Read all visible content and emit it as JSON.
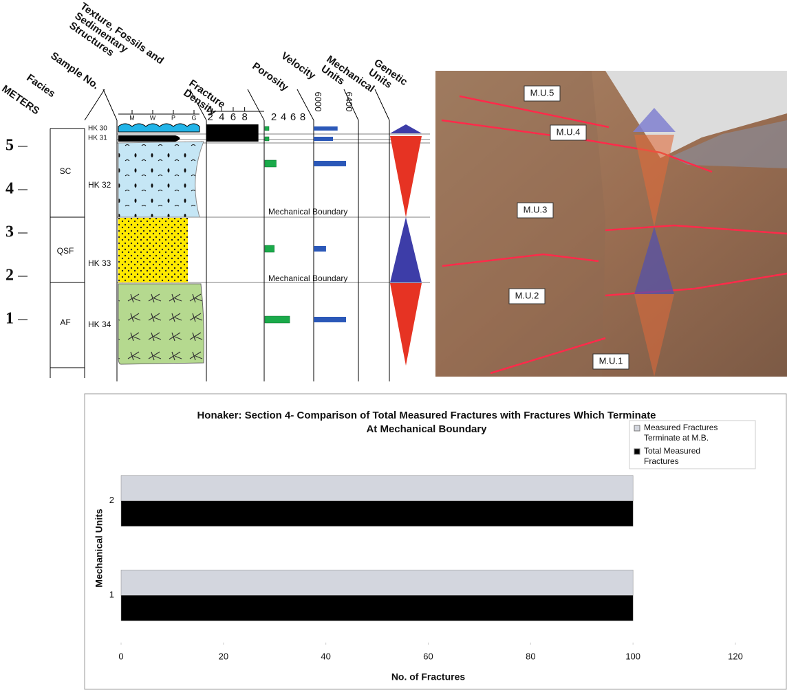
{
  "stratigraphic_column": {
    "headers": [
      [
        "METERS"
      ],
      [
        "Facies"
      ],
      [
        "Sample No."
      ],
      [
        "Texture, Fossils and",
        "Sedimentary",
        "Structures"
      ],
      [
        "Fracture",
        "Density"
      ],
      [
        "Porosity"
      ],
      [
        "Velocity"
      ],
      [
        "Mechanical",
        "Units"
      ],
      [
        "Genetic",
        "Units"
      ]
    ],
    "meter_ticks": [
      1,
      2,
      3,
      4,
      5
    ],
    "texture_scale": [
      "M",
      "W",
      "P",
      "G"
    ],
    "facies": [
      "SC",
      "QSF",
      "AF"
    ],
    "samples": [
      "HK 30",
      "HK 31",
      "HK 32",
      "HK 33",
      "HK 34"
    ],
    "fracture_density_ticks": [
      2,
      4,
      6,
      8
    ],
    "fracture_density_values": [
      10.4,
      10.4
    ],
    "porosity_ticks": [
      2,
      4,
      6,
      8
    ],
    "porosity_values": [
      1,
      1,
      2.5,
      2.1,
      5.3
    ],
    "velocity_lim": [
      5950,
      6450
    ],
    "velocity_ticks": [
      6000,
      6400
    ],
    "velocity_values": [
      6260,
      6200,
      6370,
      6110,
      6370
    ],
    "boundaries": [
      "Mechanical Boundary",
      "Mechanical Boundary"
    ]
  },
  "photo": {
    "labels": [
      "M.U.5",
      "M.U.4",
      "M.U.3",
      "M.U.2",
      "M.U.1"
    ]
  },
  "chart_data": {
    "type": "hbar",
    "title": "Honaker: Section 4- Comparison of Total Measured Fractures with Fractures Which Terminate At Mechanical Boundary",
    "x_label": "No. of Fractures",
    "y_label": "Mechanical Units",
    "categories": [
      "1",
      "2"
    ],
    "series": [
      {
        "name": "Measured Fractures Terminate at M.B.",
        "color": "#d3d6de",
        "values": [
          100,
          100
        ]
      },
      {
        "name": "Total Measured Fractures",
        "color": "#000000",
        "values": [
          100,
          100
        ]
      }
    ],
    "xlim": [
      0,
      120
    ],
    "xticks": [
      0,
      20,
      40,
      60,
      80,
      100,
      120
    ],
    "legend": "top-right"
  }
}
